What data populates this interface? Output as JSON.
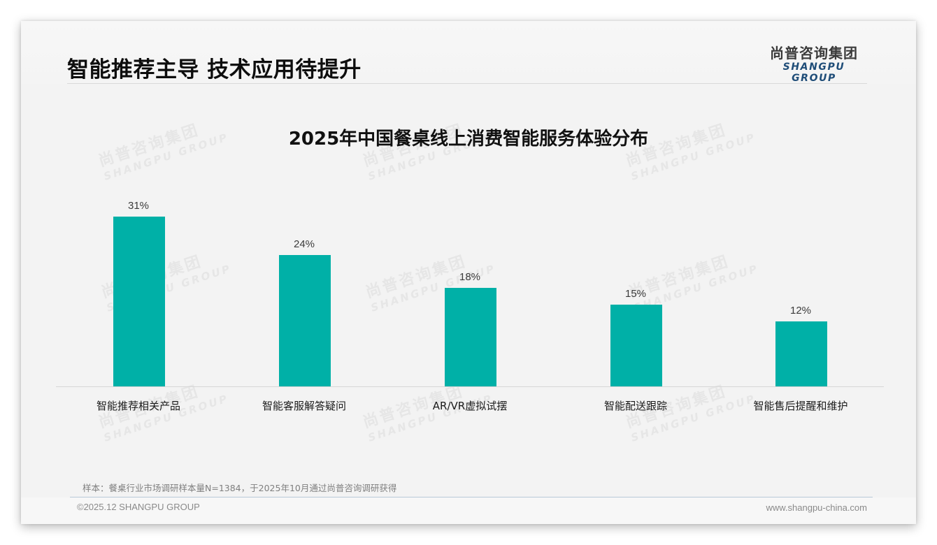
{
  "header": {
    "title": "智能推荐主导 技术应用待提升",
    "logo": {
      "cn": "尚普咨询集团",
      "en": "SHANGPU GROUP"
    }
  },
  "watermark": {
    "cn": "尚普咨询集团",
    "en": "SHANGPU GROUP"
  },
  "chart_data": {
    "type": "bar",
    "title": "2025年中国餐桌线上消费智能服务体验分布",
    "categories": [
      "智能推荐相关产品",
      "智能客服解答疑问",
      "AR/VR虚拟试摆",
      "智能配送跟踪",
      "智能售后提醒和维护"
    ],
    "values": [
      31,
      24,
      18,
      15,
      12
    ],
    "value_labels": [
      "31%",
      "24%",
      "18%",
      "15%",
      "12%"
    ],
    "unit": "%",
    "xlabel": "",
    "ylabel": "",
    "ylim": [
      0,
      35
    ],
    "grid": false,
    "legend": "none",
    "bar_color": "#00b0a7"
  },
  "footer": {
    "note": "样本：餐桌行业市场调研样本量N=1384，于2025年10月通过尚普咨询调研获得",
    "copyright": "©2025.12 SHANGPU GROUP",
    "website": "www.shangpu-china.com"
  }
}
